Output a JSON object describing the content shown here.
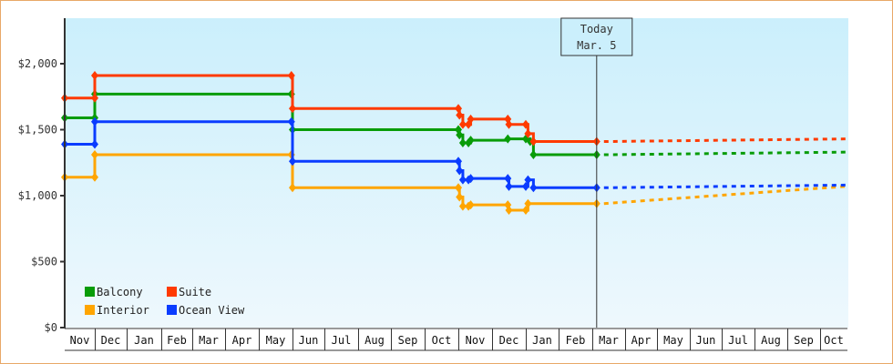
{
  "chart_data": {
    "type": "line",
    "subtype": "step",
    "title": "",
    "xlabel": "",
    "ylabel": "",
    "ylim": [
      0,
      2300
    ],
    "y_ticks": [
      {
        "value": 0,
        "label": "$0"
      },
      {
        "value": 500,
        "label": "$500"
      },
      {
        "value": 1000,
        "label": "$1,000"
      },
      {
        "value": 1500,
        "label": "$1,500"
      },
      {
        "value": 2000,
        "label": "$2,000"
      }
    ],
    "x_months": [
      "Nov",
      "Dec",
      "Jan",
      "Feb",
      "Mar",
      "Apr",
      "May",
      "Jun",
      "Jul",
      "Aug",
      "Sep",
      "Oct",
      "Nov",
      "Dec",
      "Jan",
      "Feb",
      "Mar",
      "Apr",
      "May",
      "Jun",
      "Jul",
      "Aug",
      "Sep",
      "Oct"
    ],
    "today_marker": {
      "line1": "Today",
      "line2": "Mar. 5"
    },
    "legend": {
      "position": "bottom-left"
    },
    "grid": false,
    "series": [
      {
        "name": "Balcony",
        "color": "#089c08",
        "points": [
          [
            "Nov 1",
            1590
          ],
          [
            "Dec 1",
            1590
          ],
          [
            "Dec 1",
            1770
          ],
          [
            "May 30",
            1770
          ],
          [
            "Jun 1",
            1500
          ],
          [
            "Oct 31",
            1500
          ],
          [
            "Nov 2",
            1460
          ],
          [
            "Nov 5",
            1400
          ],
          [
            "Nov 10",
            1400
          ],
          [
            "Nov 12",
            1420
          ],
          [
            "Dec 15",
            1430
          ],
          [
            "Jan 1",
            1430
          ],
          [
            "Jan 5",
            1410
          ],
          [
            "Jan 8",
            1310
          ],
          [
            "Mar 5",
            1310
          ]
        ],
        "forecast": [
          [
            "Mar 5",
            1310
          ],
          [
            "Oct 31",
            1330
          ]
        ]
      },
      {
        "name": "Suite",
        "color": "#ff3a00",
        "points": [
          [
            "Nov 1",
            1740
          ],
          [
            "Dec 1",
            1740
          ],
          [
            "Dec 1",
            1910
          ],
          [
            "May 30",
            1910
          ],
          [
            "Jun 1",
            1660
          ],
          [
            "Oct 31",
            1660
          ],
          [
            "Nov 2",
            1610
          ],
          [
            "Nov 5",
            1540
          ],
          [
            "Nov 10",
            1540
          ],
          [
            "Nov 12",
            1580
          ],
          [
            "Dec 15",
            1580
          ],
          [
            "Dec 16",
            1540
          ],
          [
            "Jan 1",
            1540
          ],
          [
            "Jan 3",
            1470
          ],
          [
            "Jan 8",
            1410
          ],
          [
            "Mar 5",
            1410
          ]
        ],
        "forecast": [
          [
            "Mar 5",
            1410
          ],
          [
            "Oct 31",
            1430
          ]
        ]
      },
      {
        "name": "Interior",
        "color": "#ffa500",
        "points": [
          [
            "Nov 1",
            1140
          ],
          [
            "Dec 1",
            1140
          ],
          [
            "Dec 1",
            1310
          ],
          [
            "May 30",
            1310
          ],
          [
            "Jun 1",
            1060
          ],
          [
            "Oct 31",
            1060
          ],
          [
            "Nov 2",
            990
          ],
          [
            "Nov 5",
            920
          ],
          [
            "Nov 10",
            920
          ],
          [
            "Nov 12",
            930
          ],
          [
            "Dec 15",
            930
          ],
          [
            "Dec 16",
            890
          ],
          [
            "Jan 1",
            890
          ],
          [
            "Jan 3",
            940
          ],
          [
            "Mar 5",
            940
          ]
        ],
        "forecast": [
          [
            "Mar 5",
            940
          ],
          [
            "Oct 31",
            1070
          ]
        ]
      },
      {
        "name": "Ocean View",
        "color": "#0a3cff",
        "points": [
          [
            "Nov 1",
            1390
          ],
          [
            "Dec 1",
            1390
          ],
          [
            "Dec 1",
            1560
          ],
          [
            "May 30",
            1560
          ],
          [
            "Jun 1",
            1260
          ],
          [
            "Oct 31",
            1260
          ],
          [
            "Nov 2",
            1190
          ],
          [
            "Nov 5",
            1120
          ],
          [
            "Nov 10",
            1120
          ],
          [
            "Nov 12",
            1130
          ],
          [
            "Dec 15",
            1130
          ],
          [
            "Dec 16",
            1070
          ],
          [
            "Jan 1",
            1070
          ],
          [
            "Jan 3",
            1120
          ],
          [
            "Jan 8",
            1060
          ],
          [
            "Mar 5",
            1060
          ]
        ],
        "forecast": [
          [
            "Mar 5",
            1060
          ],
          [
            "Oct 31",
            1080
          ]
        ]
      }
    ]
  }
}
